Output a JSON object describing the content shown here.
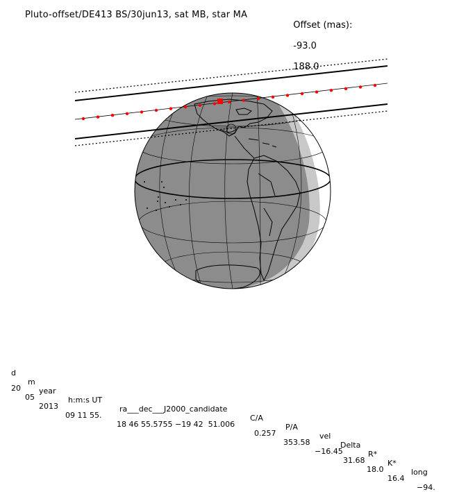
{
  "title": "Pluto-offset/DE413 BS/30jun13, sat MB, star MA",
  "offset": {
    "label": "Offset (mas):",
    "x": "-93.0",
    "y": "188.0"
  },
  "table": {
    "headers": [
      "d",
      "m",
      "year",
      "h:m:s UT",
      "ra___dec___J2000_candidate",
      "C/A",
      "P/A",
      "vel",
      "Delta",
      "R*",
      "K*",
      "long"
    ],
    "values": [
      "20",
      "05",
      "2013",
      "09 11 55.",
      "18 46 55.5755 −19 42  51.006",
      "0.257",
      "353.58",
      "−16.45",
      "31.68",
      "18.0",
      "16.4",
      "−94."
    ]
  },
  "colors": {
    "night": "#8c8c8c",
    "twilight": "#c8c8c8",
    "day": "#ffffff",
    "track": "#ff0000"
  }
}
